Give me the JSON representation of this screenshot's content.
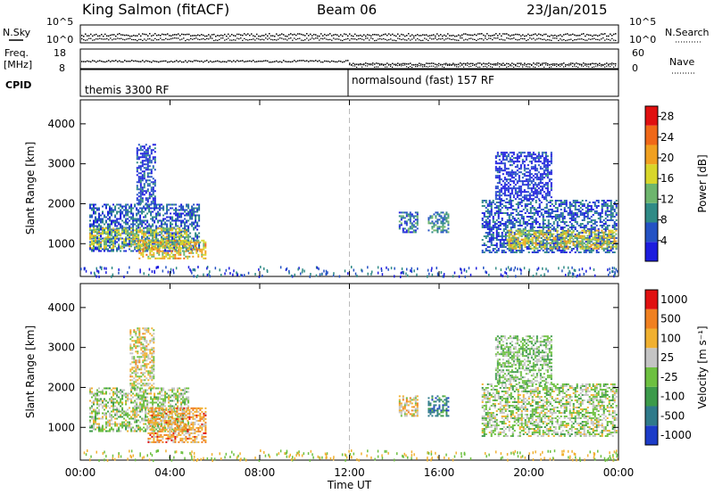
{
  "header": {
    "station": "King Salmon (fitACF)",
    "beam": "Beam 06",
    "date": "23/Jan/2015"
  },
  "noise_panel": {
    "left_label": "N.Sky",
    "left_ticks": [
      "10^5",
      "10^0"
    ],
    "right_label": "N.Search",
    "right_ticks": [
      "10^5",
      "10^0"
    ]
  },
  "freq_panel": {
    "left_label_line1": "Freq.",
    "left_label_line2": "[MHz]",
    "left_ticks": [
      "18",
      "8"
    ],
    "right_label": "Nave",
    "right_ticks": [
      "60",
      "0"
    ]
  },
  "cpid_panel": {
    "label": "CPID",
    "mode1": "themis 3300 RF",
    "mode2": "normalsound (fast) 157 RF"
  },
  "chart_data": [
    {
      "type": "heatmap",
      "quantity": "Power",
      "ylabel": "Slant Range [km]",
      "xlabel": "Time UT",
      "x_ticks": [
        "00:00",
        "04:00",
        "08:00",
        "12:00",
        "16:00",
        "20:00",
        "00:00"
      ],
      "x_range_hours": [
        0,
        24
      ],
      "y_ticks": [
        1000,
        2000,
        3000,
        4000
      ],
      "y_range_km": [
        180,
        4600
      ],
      "colorbar_label": "Power [dB]",
      "colorbar_ticks": [
        4,
        8,
        12,
        16,
        20,
        24,
        28
      ],
      "colorbar_range": [
        0,
        30
      ],
      "colors": [
        "#1c1cde",
        "#2452c4",
        "#2f8a86",
        "#6db56d",
        "#d8d62a",
        "#f0a020",
        "#f06818",
        "#e01010"
      ],
      "regions": [
        {
          "t0": 0.4,
          "t1": 5.3,
          "r0": 800,
          "r1": 2000,
          "level": 0.2
        },
        {
          "t0": 0.4,
          "t1": 4.8,
          "r0": 900,
          "r1": 1400,
          "level": 0.5
        },
        {
          "t0": 2.6,
          "t1": 5.6,
          "r0": 650,
          "r1": 1100,
          "level": 0.6
        },
        {
          "t0": 2.5,
          "t1": 3.3,
          "r0": 2000,
          "r1": 3500,
          "level": 0.15
        },
        {
          "t0": 14.2,
          "t1": 15.0,
          "r0": 1300,
          "r1": 1800,
          "level": 0.25
        },
        {
          "t0": 15.5,
          "t1": 16.4,
          "r0": 1300,
          "r1": 1800,
          "level": 0.3
        },
        {
          "t0": 17.9,
          "t1": 23.9,
          "r0": 800,
          "r1": 2100,
          "level": 0.2
        },
        {
          "t0": 19.0,
          "t1": 23.9,
          "r0": 900,
          "r1": 1350,
          "level": 0.55
        },
        {
          "t0": 18.5,
          "t1": 21.0,
          "r0": 2100,
          "r1": 3300,
          "level": 0.1
        }
      ]
    },
    {
      "type": "heatmap",
      "quantity": "Velocity",
      "ylabel": "Slant Range [km]",
      "xlabel": "Time UT",
      "x_ticks": [
        "00:00",
        "04:00",
        "08:00",
        "12:00",
        "16:00",
        "20:00",
        "00:00"
      ],
      "x_range_hours": [
        0,
        24
      ],
      "y_ticks": [
        1000,
        2000,
        3000,
        4000
      ],
      "y_range_km": [
        180,
        4600
      ],
      "colorbar_label": "Velocity [m s⁻¹]",
      "colorbar_ticks": [
        "1000",
        "500",
        "100",
        "25",
        "-25",
        "-100",
        "-500",
        "-1000"
      ],
      "colors": [
        "#1c3cc8",
        "#2f7a8a",
        "#3c9a4a",
        "#6dc040",
        "#c4c4c4",
        "#f0b030",
        "#f08020",
        "#e01010"
      ],
      "regions": [
        {
          "t0": 0.4,
          "t1": 4.8,
          "r0": 900,
          "r1": 2000,
          "level": 0.5
        },
        {
          "t0": 3.0,
          "t1": 5.6,
          "r0": 650,
          "r1": 1500,
          "level": 0.72
        },
        {
          "t0": 2.2,
          "t1": 3.3,
          "r0": 2000,
          "r1": 3500,
          "level": 0.6
        },
        {
          "t0": 14.2,
          "t1": 15.0,
          "r0": 1300,
          "r1": 1800,
          "level": 0.65
        },
        {
          "t0": 15.5,
          "t1": 16.4,
          "r0": 1300,
          "r1": 1800,
          "level": 0.25
        },
        {
          "t0": 17.9,
          "t1": 23.9,
          "r0": 800,
          "r1": 2100,
          "level": 0.5
        },
        {
          "t0": 18.5,
          "t1": 21.0,
          "r0": 2100,
          "r1": 3300,
          "level": 0.45
        }
      ]
    }
  ]
}
